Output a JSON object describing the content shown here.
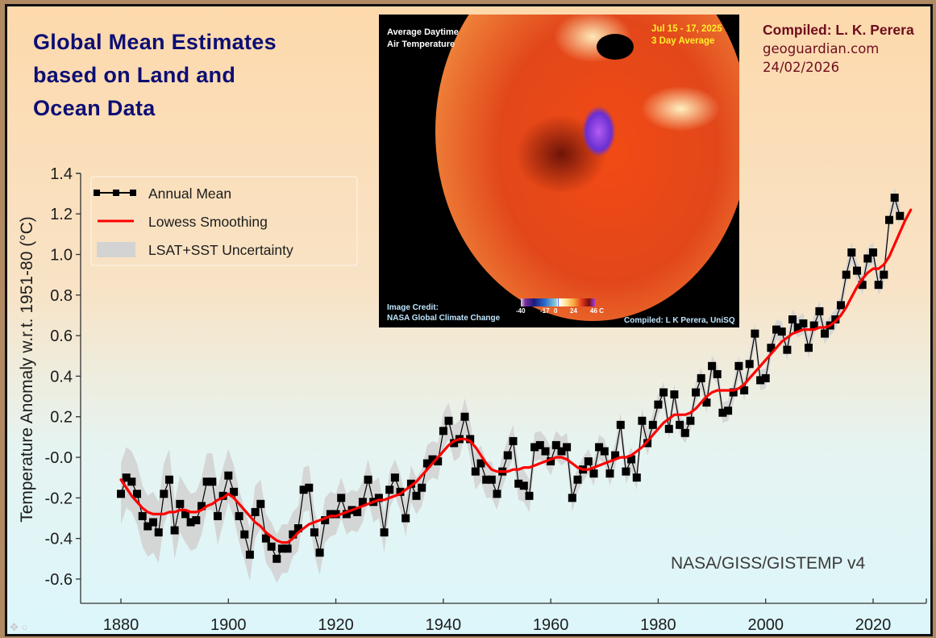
{
  "header": {
    "title": "Global Mean Estimates\nbased on Land and\nOcean Data",
    "credit_lines": [
      "Compiled: L. K. Perera",
      "geoguardian.com",
      "24/02/2026"
    ]
  },
  "inset": {
    "title_lines": [
      "Average Daytime",
      "Air Temperature"
    ],
    "date_lines": [
      "Jul 15 - 17, 2025",
      "3 Day Average"
    ],
    "image_credit_lines": [
      "Image Credit:",
      "NASA Global Climate Change"
    ],
    "compiled": "Compiled: L K Perera, UniSQ",
    "colorbar_ticks": [
      "-40",
      "-17",
      "0",
      "24",
      "46 C"
    ],
    "description": "Globe map of Europe, Africa, Middle East and South Asia showing extreme heat over the Arabian Peninsula"
  },
  "source_label": "NASA/GISS/GISTEMP v4",
  "chart_data": {
    "type": "line",
    "title": "Global Mean Estimates based on Land and Ocean Data",
    "xlabel": "",
    "ylabel": "Temperature Anomaly w.r.t. 1951-80 (°C)",
    "xlim": [
      1873,
      2030
    ],
    "ylim": [
      -0.72,
      1.42
    ],
    "xticks": [
      1880,
      1900,
      1920,
      1940,
      1960,
      1980,
      2000,
      2020
    ],
    "xtick_labels": [
      "1880",
      "1900",
      "1920",
      "1940",
      "1960",
      "1980",
      "2000",
      "2020"
    ],
    "yticks": [
      -0.6,
      -0.4,
      -0.2,
      0.0,
      0.2,
      0.4,
      0.6,
      0.8,
      1.0,
      1.2,
      1.4
    ],
    "ytick_labels": [
      "-0.6",
      "-0.4",
      "-0.2",
      "-0.0",
      "0.2",
      "0.4",
      "0.6",
      "0.8",
      "1.0",
      "1.2",
      "1.4"
    ],
    "grid": false,
    "legend": {
      "placement": "top-left",
      "entries": [
        "Annual Mean",
        "Lowess Smoothing",
        "LSAT+SST Uncertainty"
      ]
    },
    "series": [
      {
        "name": "Annual Mean",
        "color": "#000000",
        "x_start": 1880,
        "values": [
          -0.18,
          -0.1,
          -0.12,
          -0.18,
          -0.29,
          -0.34,
          -0.32,
          -0.37,
          -0.18,
          -0.11,
          -0.36,
          -0.23,
          -0.28,
          -0.32,
          -0.31,
          -0.24,
          -0.12,
          -0.12,
          -0.29,
          -0.19,
          -0.09,
          -0.17,
          -0.29,
          -0.38,
          -0.48,
          -0.27,
          -0.23,
          -0.4,
          -0.44,
          -0.5,
          -0.45,
          -0.45,
          -0.38,
          -0.35,
          -0.16,
          -0.15,
          -0.37,
          -0.47,
          -0.31,
          -0.28,
          -0.28,
          -0.2,
          -0.28,
          -0.26,
          -0.27,
          -0.22,
          -0.11,
          -0.22,
          -0.2,
          -0.37,
          -0.16,
          -0.1,
          -0.17,
          -0.3,
          -0.13,
          -0.19,
          -0.15,
          -0.03,
          -0.01,
          -0.02,
          0.13,
          0.18,
          0.07,
          0.09,
          0.2,
          0.09,
          -0.07,
          -0.03,
          -0.11,
          -0.11,
          -0.18,
          -0.07,
          0.01,
          0.08,
          -0.13,
          -0.14,
          -0.19,
          0.05,
          0.06,
          0.03,
          -0.02,
          0.06,
          0.03,
          0.05,
          -0.2,
          -0.11,
          -0.06,
          -0.02,
          -0.08,
          0.05,
          0.03,
          -0.08,
          0.01,
          0.16,
          -0.07,
          -0.01,
          -0.1,
          0.18,
          0.07,
          0.16,
          0.26,
          0.32,
          0.14,
          0.31,
          0.16,
          0.12,
          0.18,
          0.32,
          0.39,
          0.27,
          0.45,
          0.41,
          0.22,
          0.23,
          0.32,
          0.45,
          0.33,
          0.46,
          0.61,
          0.38,
          0.39,
          0.54,
          0.63,
          0.62,
          0.53,
          0.68,
          0.64,
          0.66,
          0.54,
          0.65,
          0.72,
          0.61,
          0.65,
          0.68,
          0.75,
          0.9,
          1.01,
          0.92,
          0.85,
          0.98,
          1.01,
          0.85,
          0.9,
          1.17,
          1.28,
          1.19
        ]
      },
      {
        "name": "Lowess Smoothing",
        "color": "#ff0000",
        "x_start": 1880,
        "values": [
          -0.11,
          -0.15,
          -0.19,
          -0.22,
          -0.25,
          -0.27,
          -0.28,
          -0.28,
          -0.28,
          -0.27,
          -0.27,
          -0.26,
          -0.26,
          -0.27,
          -0.27,
          -0.26,
          -0.24,
          -0.23,
          -0.21,
          -0.2,
          -0.18,
          -0.2,
          -0.23,
          -0.26,
          -0.29,
          -0.32,
          -0.34,
          -0.37,
          -0.39,
          -0.41,
          -0.42,
          -0.42,
          -0.4,
          -0.37,
          -0.35,
          -0.33,
          -0.32,
          -0.31,
          -0.3,
          -0.29,
          -0.29,
          -0.28,
          -0.27,
          -0.26,
          -0.25,
          -0.24,
          -0.23,
          -0.22,
          -0.21,
          -0.21,
          -0.2,
          -0.19,
          -0.18,
          -0.16,
          -0.14,
          -0.12,
          -0.09,
          -0.06,
          -0.03,
          0.0,
          0.03,
          0.06,
          0.08,
          0.09,
          0.09,
          0.08,
          0.05,
          0.01,
          -0.03,
          -0.06,
          -0.07,
          -0.07,
          -0.07,
          -0.06,
          -0.06,
          -0.05,
          -0.05,
          -0.04,
          -0.03,
          -0.02,
          -0.01,
          0.0,
          0.0,
          -0.01,
          -0.03,
          -0.05,
          -0.06,
          -0.06,
          -0.05,
          -0.04,
          -0.03,
          -0.02,
          -0.01,
          0.0,
          0.0,
          0.01,
          0.03,
          0.05,
          0.08,
          0.11,
          0.14,
          0.17,
          0.19,
          0.21,
          0.21,
          0.21,
          0.22,
          0.24,
          0.27,
          0.3,
          0.32,
          0.33,
          0.33,
          0.33,
          0.33,
          0.34,
          0.36,
          0.39,
          0.42,
          0.45,
          0.48,
          0.51,
          0.54,
          0.57,
          0.59,
          0.61,
          0.62,
          0.63,
          0.63,
          0.63,
          0.64,
          0.64,
          0.65,
          0.67,
          0.7,
          0.74,
          0.79,
          0.84,
          0.88,
          0.91,
          0.93,
          0.93,
          0.95,
          0.99,
          1.05,
          1.11,
          1.17,
          1.22
        ]
      },
      {
        "name": "LSAT+SST Uncertainty",
        "color": "#d3d3d3",
        "x_start": 1880,
        "half_width": [
          0.15,
          0.15,
          0.15,
          0.15,
          0.15,
          0.15,
          0.15,
          0.15,
          0.15,
          0.15,
          0.14,
          0.14,
          0.14,
          0.14,
          0.14,
          0.14,
          0.14,
          0.14,
          0.14,
          0.14,
          0.13,
          0.13,
          0.13,
          0.13,
          0.13,
          0.13,
          0.12,
          0.12,
          0.12,
          0.12,
          0.12,
          0.12,
          0.11,
          0.11,
          0.11,
          0.11,
          0.11,
          0.11,
          0.11,
          0.11,
          0.1,
          0.1,
          0.1,
          0.1,
          0.1,
          0.1,
          0.1,
          0.1,
          0.1,
          0.1,
          0.09,
          0.09,
          0.09,
          0.09,
          0.09,
          0.09,
          0.09,
          0.09,
          0.09,
          0.09,
          0.09,
          0.09,
          0.09,
          0.09,
          0.09,
          0.09,
          0.09,
          0.09,
          0.09,
          0.09,
          0.08,
          0.08,
          0.08,
          0.08,
          0.08,
          0.08,
          0.08,
          0.07,
          0.07,
          0.07,
          0.07,
          0.07,
          0.07,
          0.07,
          0.07,
          0.06,
          0.06,
          0.06,
          0.06,
          0.06,
          0.06,
          0.06,
          0.06,
          0.06,
          0.06,
          0.06,
          0.06,
          0.06,
          0.06,
          0.06,
          0.05,
          0.05,
          0.05,
          0.05,
          0.05,
          0.05,
          0.05,
          0.05,
          0.05,
          0.05,
          0.05,
          0.05,
          0.05,
          0.05,
          0.05,
          0.05,
          0.05,
          0.05,
          0.05,
          0.05,
          0.05,
          0.05,
          0.05,
          0.05,
          0.05,
          0.05,
          0.05,
          0.05,
          0.05,
          0.05,
          0.05,
          0.05,
          0.05,
          0.05,
          0.05,
          0.05,
          0.05,
          0.05,
          0.05,
          0.05,
          0.05,
          0.05,
          0.05,
          0.05,
          0.05,
          0.05
        ]
      }
    ]
  }
}
